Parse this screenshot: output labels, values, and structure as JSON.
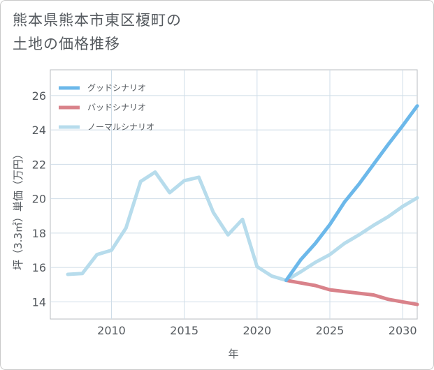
{
  "page_title": {
    "line1": "熊本県熊本市東区榎町の",
    "line2": "土地の価格推移"
  },
  "chart_data": {
    "type": "line",
    "title": "熊本県熊本市東区榎町の土地の価格推移",
    "xlabel": "年",
    "ylabel": "坪（3.3㎡）単価（万円）",
    "xlim": [
      2005.8,
      2031
    ],
    "ylim": [
      13,
      27.5
    ],
    "x_ticks": [
      2010,
      2015,
      2020,
      2025,
      2030
    ],
    "y_ticks": [
      14,
      16,
      18,
      20,
      22,
      24,
      26
    ],
    "legend_position": "top-left",
    "series": [
      {
        "name": "グッドシナリオ",
        "color": "#6cb8ea",
        "x": [
          2022,
          2023,
          2024,
          2025,
          2026,
          2027,
          2028,
          2029,
          2030,
          2031
        ],
        "y": [
          15.25,
          16.45,
          17.4,
          18.5,
          19.8,
          20.85,
          22.0,
          23.15,
          24.25,
          25.4
        ]
      },
      {
        "name": "バッドシナリオ",
        "color": "#d9828a",
        "x": [
          2022,
          2023,
          2024,
          2025,
          2026,
          2027,
          2028,
          2029,
          2030,
          2031
        ],
        "y": [
          15.25,
          15.1,
          14.95,
          14.7,
          14.6,
          14.5,
          14.4,
          14.15,
          14.0,
          13.85
        ]
      },
      {
        "name": "ノーマルシナリオ",
        "color": "#b7dcec",
        "x": [
          2007,
          2008,
          2009,
          2010,
          2011,
          2012,
          2013,
          2014,
          2015,
          2016,
          2017,
          2018,
          2019,
          2020,
          2021,
          2022,
          2023,
          2024,
          2025,
          2026,
          2027,
          2028,
          2029,
          2030,
          2031
        ],
        "y": [
          15.6,
          15.65,
          16.75,
          17.0,
          18.3,
          21.0,
          21.55,
          20.35,
          21.05,
          21.25,
          19.2,
          17.9,
          18.8,
          16.05,
          15.5,
          15.25,
          15.75,
          16.3,
          16.75,
          17.4,
          17.9,
          18.45,
          18.95,
          19.55,
          20.05
        ]
      }
    ]
  }
}
